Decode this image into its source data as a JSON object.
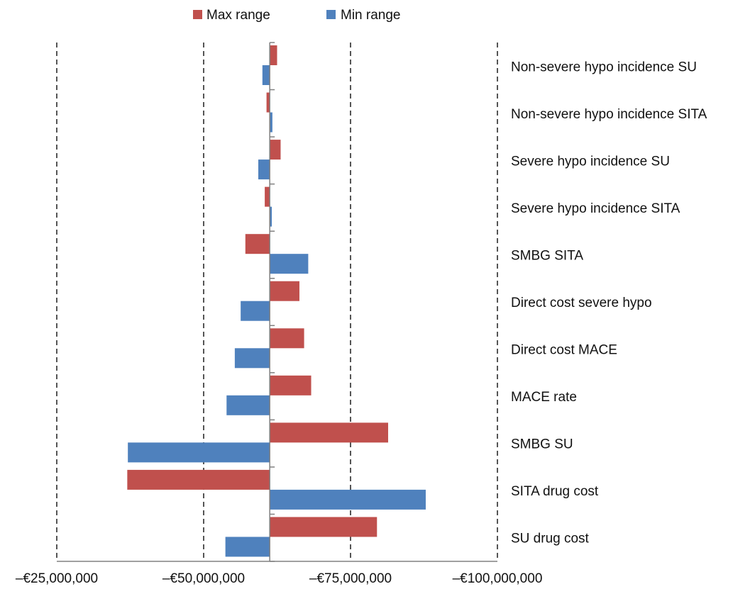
{
  "chart_data": {
    "type": "bar",
    "orientation": "horizontal",
    "title": "",
    "xlabel": "",
    "ylabel": "",
    "baseline": 61250000,
    "xlim": [
      25000000,
      100000000
    ],
    "x_tick_labels": [
      "–€25,000,000",
      "–€50,000,000",
      "–€75,000,000",
      "–€100,000,000"
    ],
    "x_tick_values": [
      25000000,
      50000000,
      75000000,
      100000000
    ],
    "grid": "vertical dashed",
    "legend_position": "top",
    "categories": [
      "Non-severe hypo incidence SU",
      "Non-severe hypo incidence SITA",
      "Severe hypo incidence SU",
      "Severe hypo incidence SITA",
      "SMBG SITA",
      "Direct cost severe hypo",
      "Direct cost MACE",
      "MACE rate",
      "SMBG SU",
      "SITA drug cost",
      "SU drug cost"
    ],
    "series": [
      {
        "name": "Max range",
        "color": "#c0504d",
        "values": [
          62500000,
          60700000,
          63100000,
          60400000,
          57100000,
          66300000,
          67100000,
          68300000,
          81400000,
          37000000,
          79500000
        ]
      },
      {
        "name": "Min range",
        "color": "#4f81bd",
        "values": [
          60000000,
          61700000,
          59300000,
          61600000,
          67800000,
          56300000,
          55300000,
          53900000,
          37100000,
          87800000,
          53700000
        ]
      }
    ]
  }
}
